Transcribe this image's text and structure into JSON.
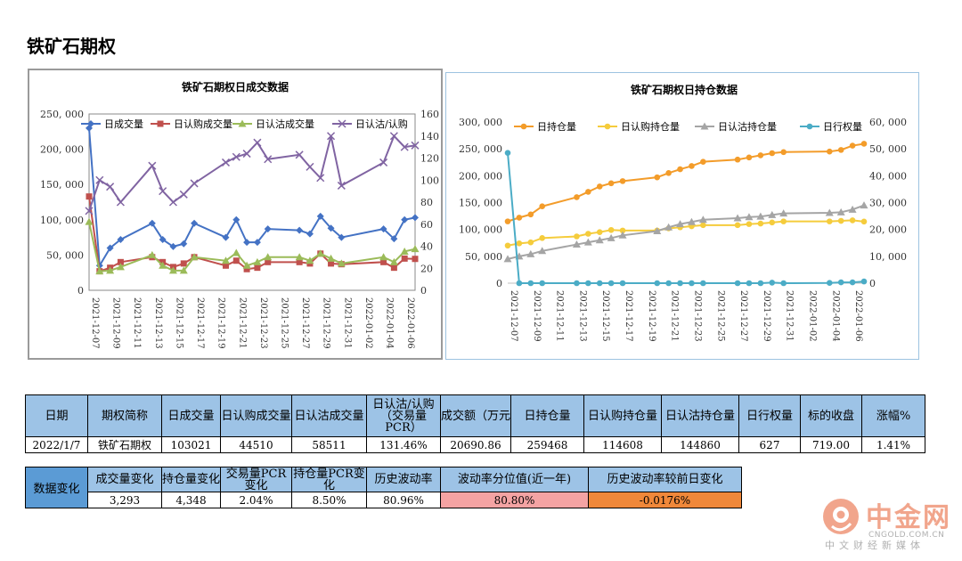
{
  "page_title": "铁矿石期权",
  "chart_data": [
    {
      "type": "line",
      "title": "铁矿石期权日成交数据",
      "x": [
        "2021-12-07",
        "2021-12-08",
        "2021-12-09",
        "2021-12-10",
        "2021-12-13",
        "2021-12-14",
        "2021-12-15",
        "2021-12-16",
        "2021-12-17",
        "2021-12-20",
        "2021-12-21",
        "2021-12-22",
        "2021-12-23",
        "2021-12-24",
        "2021-12-27",
        "2021-12-28",
        "2021-12-29",
        "2021-12-30",
        "2021-12-31",
        "2022-01-04",
        "2022-01-05",
        "2022-01-06",
        "2022-01-07"
      ],
      "x_tick_labels": [
        "2021-12-07",
        "2021-12-09",
        "2021-12-11",
        "2021-12-13",
        "2021-12-15",
        "2021-12-17",
        "2021-12-19",
        "2021-12-21",
        "2021-12-23",
        "2021-12-25",
        "2021-12-27",
        "2021-12-29",
        "2021-12-31",
        "2022-01-02",
        "2022-01-04",
        "2022-01-06"
      ],
      "x_range": [
        "2021-12-07",
        "2022-01-07"
      ],
      "y_left": {
        "range": [
          0,
          250000
        ],
        "ticks": [
          "0",
          "50, 000",
          "100, 000",
          "150, 000",
          "200, 000",
          "250, 000"
        ]
      },
      "y_right": {
        "range": [
          0,
          160
        ],
        "ticks": [
          "0",
          "20",
          "40",
          "60",
          "80",
          "100",
          "120",
          "140",
          "160"
        ]
      },
      "grid": false,
      "legend_position": "top",
      "series": [
        {
          "name": "日成交量",
          "axis": "left",
          "color": "#4472c4",
          "marker": "diamond",
          "values": [
            230000,
            35000,
            60000,
            72000,
            95000,
            72000,
            62000,
            66000,
            95000,
            75000,
            100000,
            68000,
            68000,
            87000,
            85000,
            80000,
            105000,
            88000,
            75000,
            87000,
            73000,
            100000,
            103021
          ]
        },
        {
          "name": "日认购成交量",
          "axis": "left",
          "color": "#c0504d",
          "marker": "square",
          "values": [
            133000,
            27000,
            32000,
            40000,
            47000,
            40000,
            33000,
            38000,
            47000,
            35000,
            42000,
            30000,
            32000,
            40000,
            40000,
            38000,
            52000,
            38000,
            37000,
            40000,
            32000,
            45000,
            44510
          ]
        },
        {
          "name": "日认沽成交量",
          "axis": "left",
          "color": "#9bbb59",
          "marker": "triangle",
          "values": [
            97000,
            27000,
            28000,
            33000,
            50000,
            35000,
            28000,
            28000,
            47000,
            42000,
            53000,
            35000,
            40000,
            47000,
            47000,
            42000,
            52000,
            45000,
            38000,
            47000,
            40000,
            55000,
            58511
          ]
        },
        {
          "name": "日认沽/认购",
          "axis": "right",
          "color": "#8064a2",
          "marker": "x",
          "values": [
            72,
            100,
            94,
            80,
            113,
            90,
            80,
            87,
            97,
            116,
            121,
            124,
            134,
            119,
            123,
            112,
            102,
            140,
            95,
            116,
            140,
            130,
            131.46
          ]
        }
      ]
    },
    {
      "type": "line",
      "title": "铁矿石期权日持仓数据",
      "x": [
        "2021-12-07",
        "2021-12-08",
        "2021-12-09",
        "2021-12-10",
        "2021-12-13",
        "2021-12-14",
        "2021-12-15",
        "2021-12-16",
        "2021-12-17",
        "2021-12-20",
        "2021-12-21",
        "2021-12-22",
        "2021-12-23",
        "2021-12-24",
        "2021-12-27",
        "2021-12-28",
        "2021-12-29",
        "2021-12-30",
        "2021-12-31",
        "2022-01-04",
        "2022-01-05",
        "2022-01-06",
        "2022-01-07"
      ],
      "x_tick_labels": [
        "2021-12-07",
        "2021-12-09",
        "2021-12-11",
        "2021-12-13",
        "2021-12-15",
        "2021-12-17",
        "2021-12-19",
        "2021-12-21",
        "2021-12-23",
        "2021-12-25",
        "2021-12-27",
        "2021-12-29",
        "2021-12-31",
        "2022-01-02",
        "2022-01-04",
        "2022-01-06"
      ],
      "x_range": [
        "2021-12-07",
        "2022-01-07"
      ],
      "y_left": {
        "range": [
          0,
          300000
        ],
        "ticks": [
          "0",
          "50, 000",
          "100, 000",
          "150, 000",
          "200, 000",
          "250, 000",
          "300, 000"
        ]
      },
      "y_right": {
        "range": [
          0,
          60000
        ],
        "ticks": [
          "0",
          "10, 000",
          "20, 000",
          "30, 000",
          "40, 000",
          "50, 000",
          "60, 000"
        ]
      },
      "grid": false,
      "legend_position": "top",
      "series": [
        {
          "name": "日持仓量",
          "axis": "left",
          "color": "#f39c2a",
          "marker": "circle",
          "values": [
            115000,
            122000,
            128000,
            143000,
            160000,
            170000,
            180000,
            186000,
            190000,
            197000,
            205000,
            212000,
            218000,
            226000,
            230000,
            234000,
            238000,
            242000,
            244000,
            245000,
            248000,
            256000,
            259468
          ]
        },
        {
          "name": "日认购持仓量",
          "axis": "left",
          "color": "#f5cc3c",
          "marker": "circle",
          "values": [
            70000,
            74000,
            76000,
            84000,
            87000,
            92000,
            95000,
            99000,
            98000,
            98000,
            102000,
            104000,
            106000,
            108000,
            108000,
            110000,
            111000,
            113000,
            115000,
            115000,
            116000,
            117000,
            114608
          ]
        },
        {
          "name": "日认沽持仓量",
          "axis": "left",
          "color": "#a5a5a5",
          "marker": "triangle",
          "values": [
            45000,
            50000,
            54000,
            60000,
            72000,
            76000,
            80000,
            84000,
            89000,
            97000,
            104000,
            110000,
            114000,
            118000,
            121000,
            123000,
            124000,
            127000,
            130000,
            131000,
            132000,
            137000,
            144860
          ]
        },
        {
          "name": "日行权量",
          "axis": "right",
          "color": "#4bacc6",
          "marker": "circle",
          "values": [
            48500,
            0,
            0,
            0,
            0,
            0,
            0,
            0,
            0,
            0,
            0,
            0,
            0,
            0,
            0,
            0,
            0,
            200,
            0,
            100,
            300,
            300,
            627
          ]
        }
      ]
    }
  ],
  "summary_table": {
    "headers": [
      "日期",
      "期权简称",
      "日成交量",
      "日认购成交量",
      "日认沽成交量",
      "日认沽/认购（交易量PCR）",
      "成交额（万元",
      "日持仓量",
      "日认购持仓量",
      "日认沽持仓量",
      "日行权量",
      "标的收盘",
      "涨幅%"
    ],
    "row": [
      "2022/1/7",
      "铁矿石期权",
      "103021",
      "44510",
      "58511",
      "131.46%",
      "20690.86",
      "259468",
      "114608",
      "144860",
      "627",
      "719.00",
      "1.41%"
    ]
  },
  "change_table": {
    "side_label": "数据变化",
    "headers": [
      "成交量变化",
      "持仓量变化",
      "交易量PCR变化",
      "持仓量PCR变化",
      "历史波动率",
      "波动率分位值(近一年)",
      "历史波动率较前日变化"
    ],
    "row": [
      "3,293",
      "4,348",
      "2.04%",
      "8.50%",
      "80.96%",
      "80.80%",
      "-0.0176%"
    ],
    "highlight_colors": {
      "pink": "#f4a3a3",
      "orange": "#f0883a"
    }
  },
  "logo": {
    "name": "中金网",
    "domain_text": "CNGOLD.COM.CN",
    "slogan": "中文财经新媒体",
    "color": "#f1a58c"
  }
}
